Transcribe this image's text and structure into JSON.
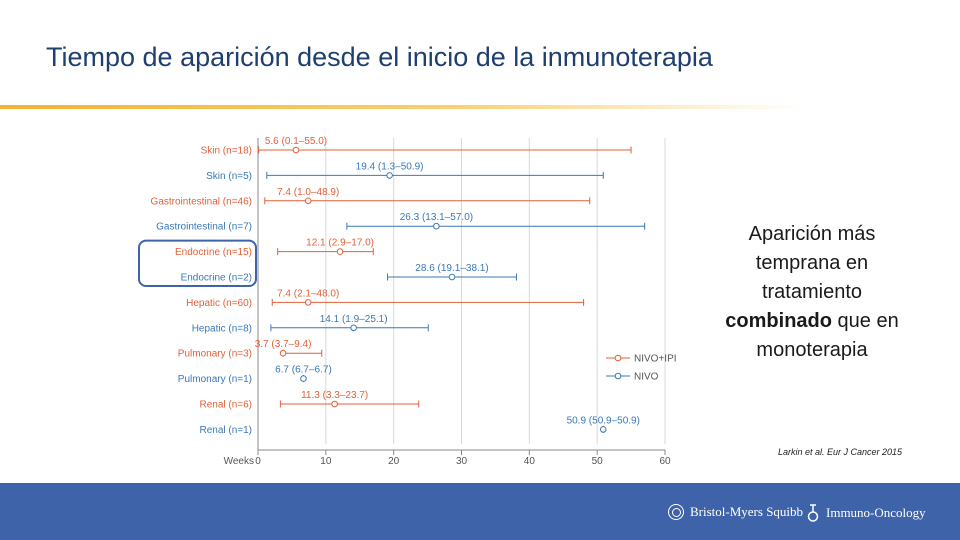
{
  "slide": {
    "title": "Tiempo de aparición desde el inicio de la inmunoterapia",
    "callout_before": "Aparición más temprana en tratamiento ",
    "callout_bold": "combinado",
    "callout_after": " que en monoterapia",
    "citation": "Larkin et al. Eur J Cancer 2015",
    "footer": {
      "logo_left": "Bristol-Myers Squibb",
      "logo_right": "Immuno-Oncology",
      "logo_left_icon": "bms-logo-icon",
      "logo_right_icon": "immuno-oncology-icon",
      "color": "#3e63a8"
    },
    "accent_color": "#f2b233",
    "title_color": "#1f3f6e"
  },
  "chart_data": {
    "type": "forest",
    "xlabel": "Weeks",
    "xlim": [
      0,
      60
    ],
    "xticks": [
      0,
      10,
      20,
      30,
      40,
      50,
      60
    ],
    "legend": {
      "placement": "bottom-right",
      "entries": [
        {
          "name": "NIVO+IPI",
          "color": "#e0613a"
        },
        {
          "name": "NIVO",
          "color": "#3a78b8"
        }
      ]
    },
    "highlight_rows": [
      4,
      5
    ],
    "highlight_color": "#3e63a8",
    "rows": [
      {
        "label": "Skin (n=18)",
        "series": "NIVO+IPI",
        "median": 5.6,
        "low": 0.1,
        "high": 55.0,
        "text": "5.6 (0.1–55.0)"
      },
      {
        "label": "Skin (n=5)",
        "series": "NIVO",
        "median": 19.4,
        "low": 1.3,
        "high": 50.9,
        "text": "19.4 (1.3–50.9)"
      },
      {
        "label": "Gastrointestinal (n=46)",
        "series": "NIVO+IPI",
        "median": 7.4,
        "low": 1.0,
        "high": 48.9,
        "text": "7.4 (1.0–48.9)"
      },
      {
        "label": "Gastrointestinal (n=7)",
        "series": "NIVO",
        "median": 26.3,
        "low": 13.1,
        "high": 57.0,
        "text": "26.3 (13.1–57.0)"
      },
      {
        "label": "Endocrine (n=15)",
        "series": "NIVO+IPI",
        "median": 12.1,
        "low": 2.9,
        "high": 17.0,
        "text": "12.1 (2.9–17.0)"
      },
      {
        "label": "Endocrine (n=2)",
        "series": "NIVO",
        "median": 28.6,
        "low": 19.1,
        "high": 38.1,
        "text": "28.6 (19.1–38.1)"
      },
      {
        "label": "Hepatic (n=60)",
        "series": "NIVO+IPI",
        "median": 7.4,
        "low": 2.1,
        "high": 48.0,
        "text": "7.4 (2.1–48.0)"
      },
      {
        "label": "Hepatic (n=8)",
        "series": "NIVO",
        "median": 14.1,
        "low": 1.9,
        "high": 25.1,
        "text": "14.1 (1.9–25.1)"
      },
      {
        "label": "Pulmonary (n=3)",
        "series": "NIVO+IPI",
        "median": 3.7,
        "low": 3.7,
        "high": 9.4,
        "text": "3.7 (3.7–9.4)"
      },
      {
        "label": "Pulmonary (n=1)",
        "series": "NIVO",
        "median": 6.7,
        "low": 6.7,
        "high": 6.7,
        "text": "6.7 (6.7–6.7)"
      },
      {
        "label": "Renal (n=6)",
        "series": "NIVO+IPI",
        "median": 11.3,
        "low": 3.3,
        "high": 23.7,
        "text": "11.3 (3.3–23.7)"
      },
      {
        "label": "Renal (n=1)",
        "series": "NIVO",
        "median": 50.9,
        "low": 50.9,
        "high": 50.9,
        "text": "50.9 (50.9–50.9)"
      }
    ]
  }
}
